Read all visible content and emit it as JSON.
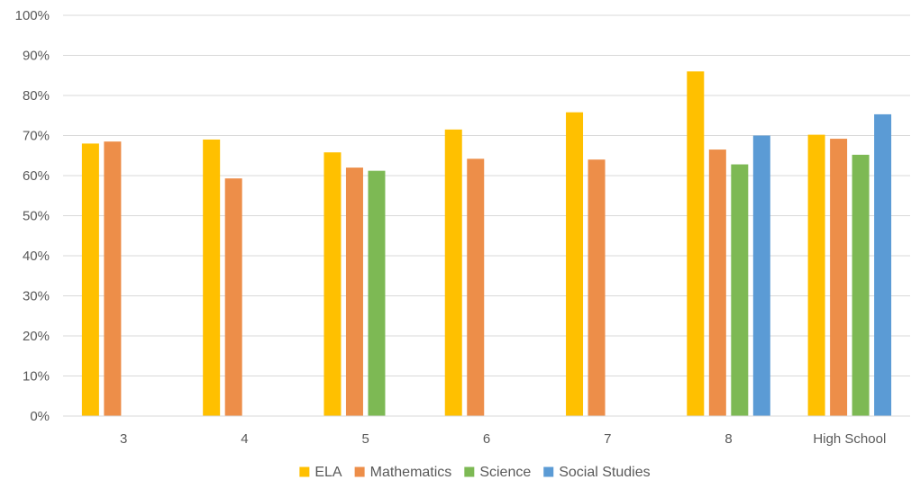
{
  "chart_data": {
    "type": "bar",
    "title": "",
    "xlabel": "",
    "ylabel": "",
    "categories": [
      "3",
      "4",
      "5",
      "6",
      "7",
      "8",
      "High School"
    ],
    "series": [
      {
        "name": "ELA",
        "color": "#FFC000",
        "values": [
          68,
          69,
          65.8,
          71.5,
          75.8,
          86,
          70.2
        ]
      },
      {
        "name": "Mathematics",
        "color": "#ED8E49",
        "values": [
          68.5,
          59.3,
          62,
          64.2,
          64,
          66.5,
          69.2
        ]
      },
      {
        "name": "Science",
        "color": "#7DB954",
        "values": [
          null,
          null,
          61.2,
          null,
          null,
          62.8,
          65.2
        ]
      },
      {
        "name": "Social Studies",
        "color": "#5B9BD5",
        "values": [
          null,
          null,
          null,
          null,
          null,
          70,
          75.3
        ]
      }
    ],
    "ylim": [
      0,
      100
    ],
    "yticks": [
      "0%",
      "10%",
      "20%",
      "30%",
      "40%",
      "50%",
      "60%",
      "70%",
      "80%",
      "90%",
      "100%"
    ],
    "grid": true,
    "legend_position": "bottom"
  }
}
